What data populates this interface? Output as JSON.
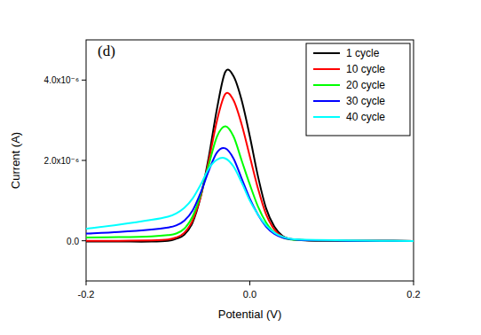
{
  "chart_data": {
    "type": "line",
    "annotation": "(d)",
    "x_label": "Potential (V)",
    "y_label": "Current (A)",
    "x": [
      -0.2,
      -0.16,
      -0.12,
      -0.1,
      -0.09,
      -0.08,
      -0.07,
      -0.06,
      -0.05,
      -0.04,
      -0.03,
      -0.02,
      -0.01,
      0,
      0.01,
      0.02,
      0.03,
      0.04,
      0.05,
      0.06,
      0.08,
      0.12,
      0.16,
      0.2
    ],
    "series": [
      {
        "name": "1 cycle",
        "color": "#000000",
        "values": [
          -2e-08,
          -2e-08,
          -2e-08,
          0,
          5e-08,
          1.5e-07,
          4.5e-07,
          1.1e-06,
          2.1e-06,
          3.3e-06,
          4.2e-06,
          4.1e-06,
          3.5e-06,
          2.6e-06,
          1.6e-06,
          8e-07,
          3.5e-07,
          1.2e-07,
          4e-08,
          2e-08,
          0,
          0,
          0,
          -1e-08
        ]
      },
      {
        "name": "10 cycle",
        "color": "#ff0000",
        "values": [
          0,
          0,
          1e-08,
          3e-08,
          8e-08,
          2e-07,
          5e-07,
          1.1e-06,
          2e-06,
          3e-06,
          3.65e-06,
          3.5e-06,
          2.9e-06,
          2.1e-06,
          1.3e-06,
          6.5e-07,
          2.8e-07,
          1e-07,
          4e-08,
          2e-08,
          1e-08,
          0,
          0,
          -1e-08
        ]
      },
      {
        "name": "20 cycle",
        "color": "#00ff00",
        "values": [
          8e-08,
          9e-08,
          1.1e-07,
          1.4e-07,
          1.8e-07,
          3e-07,
          6e-07,
          1.15e-06,
          1.9e-06,
          2.6e-06,
          2.85e-06,
          2.6e-06,
          2e-06,
          1.4e-06,
          8.5e-07,
          4.5e-07,
          2e-07,
          8e-08,
          3e-08,
          2e-08,
          1e-08,
          0,
          0,
          -1e-08
        ]
      },
      {
        "name": "30 cycle",
        "color": "#0000ff",
        "values": [
          1.8e-07,
          2.2e-07,
          2.8e-07,
          3.3e-07,
          3.8e-07,
          5e-07,
          7.5e-07,
          1.2e-06,
          1.75e-06,
          2.2e-06,
          2.3e-06,
          2.05e-06,
          1.55e-06,
          1.05e-06,
          6.5e-07,
          3.5e-07,
          1.7e-07,
          8e-08,
          4e-08,
          2e-08,
          1e-08,
          0,
          0,
          -1e-08
        ]
      },
      {
        "name": "40 cycle",
        "color": "#00ffff",
        "values": [
          3e-07,
          4e-07,
          5.2e-07,
          6e-07,
          6.8e-07,
          8.2e-07,
          1.05e-06,
          1.4e-06,
          1.8e-06,
          2.02e-06,
          2.05e-06,
          1.85e-06,
          1.45e-06,
          1e-06,
          6.5e-07,
          3.8e-07,
          2e-07,
          1e-07,
          5e-08,
          3e-08,
          2e-08,
          1e-08,
          0,
          -1e-08
        ]
      }
    ],
    "xlim": [
      -0.2,
      0.2
    ],
    "xticks": [
      -0.2,
      {
        "value": 0,
        "label": "0.0"
      },
      0.2
    ],
    "ylim": [
      -1e-06,
      5e-06
    ],
    "yticks": [
      {
        "value": 0,
        "label": "0.0"
      },
      {
        "value": 2e-06,
        "label": "2.0x10⁻⁶"
      },
      {
        "value": 4e-06,
        "label": "4.0x10⁻⁶"
      }
    ],
    "legend": "top-right",
    "grid": false
  }
}
